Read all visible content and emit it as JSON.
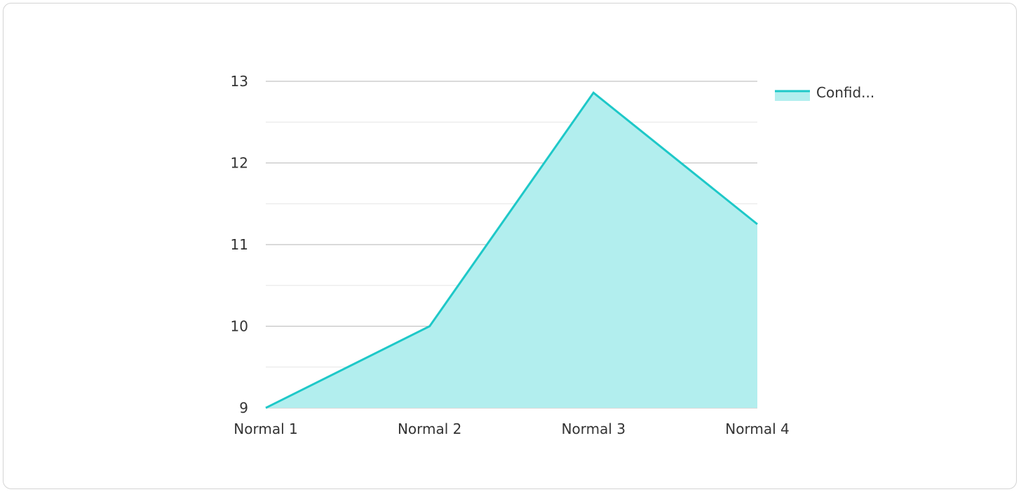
{
  "chart_data": {
    "type": "area",
    "categories": [
      "Normal 1",
      "Normal 2",
      "Normal 3",
      "Normal 4"
    ],
    "series": [
      {
        "name": "Confid...",
        "values": [
          9,
          10,
          12.86,
          11.25
        ]
      }
    ],
    "ylim": [
      9,
      13
    ],
    "yticks": [
      9,
      10,
      11,
      12,
      13
    ],
    "grid": true,
    "legend_position": "top-right",
    "colors": {
      "line": "#1ec8c8",
      "fill": "#b2eeee",
      "major_grid": "#c4c4c4",
      "minor_grid": "#e6e6e6",
      "text": "#333333"
    }
  }
}
